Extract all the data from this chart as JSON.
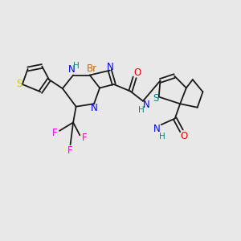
{
  "bg_color": "#e8e8e8",
  "bond_color": "#1a1a1a",
  "figsize": [
    3.0,
    3.0
  ],
  "dpi": 100,
  "colors": {
    "S": "#cccc00",
    "S2": "#008888",
    "N": "#0000ee",
    "H": "#008888",
    "Br": "#cc6600",
    "O": "#ee0000",
    "F": "#ee00ee",
    "C": "#1a1a1a"
  }
}
